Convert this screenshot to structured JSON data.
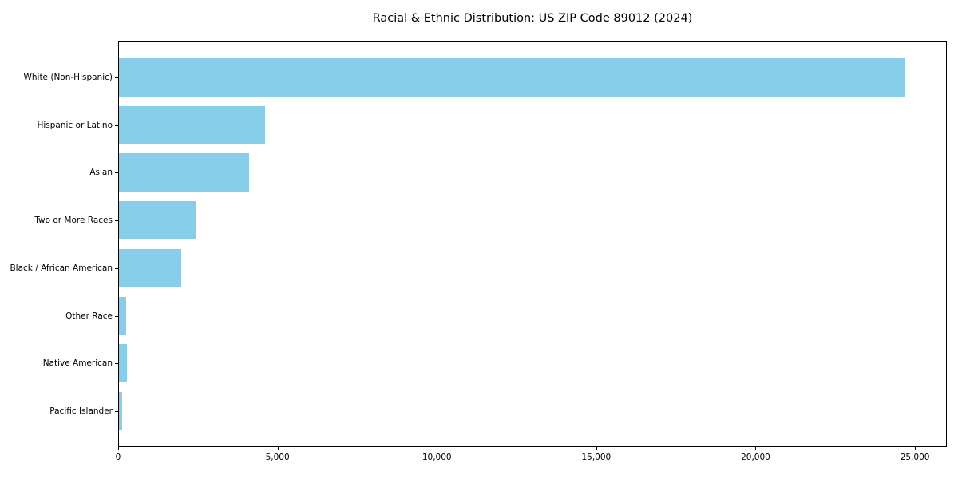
{
  "chart_data": {
    "type": "bar",
    "orientation": "horizontal",
    "title": "Racial & Ethnic Distribution: US ZIP Code 89012 (2024)",
    "categories": [
      "White (Non-Hispanic)",
      "Hispanic or Latino",
      "Asian",
      "Two or More Races",
      "Black / African American",
      "Other Race",
      "Native American",
      "Pacific Islander"
    ],
    "values": [
      24700,
      4600,
      4080,
      2400,
      1950,
      230,
      250,
      100
    ],
    "xlabel": "",
    "ylabel": "",
    "xlim": [
      0,
      26000
    ],
    "xticks": [
      0,
      5000,
      10000,
      15000,
      20000,
      25000
    ],
    "xtick_labels": [
      "0",
      "5,000",
      "10,000",
      "15,000",
      "20,000",
      "25,000"
    ],
    "grid": false,
    "legend_position": "none",
    "bar_color": "#87CEEB",
    "axis_color": "#000000",
    "background_color": "#FFFFFF",
    "text_color": "#000000"
  }
}
